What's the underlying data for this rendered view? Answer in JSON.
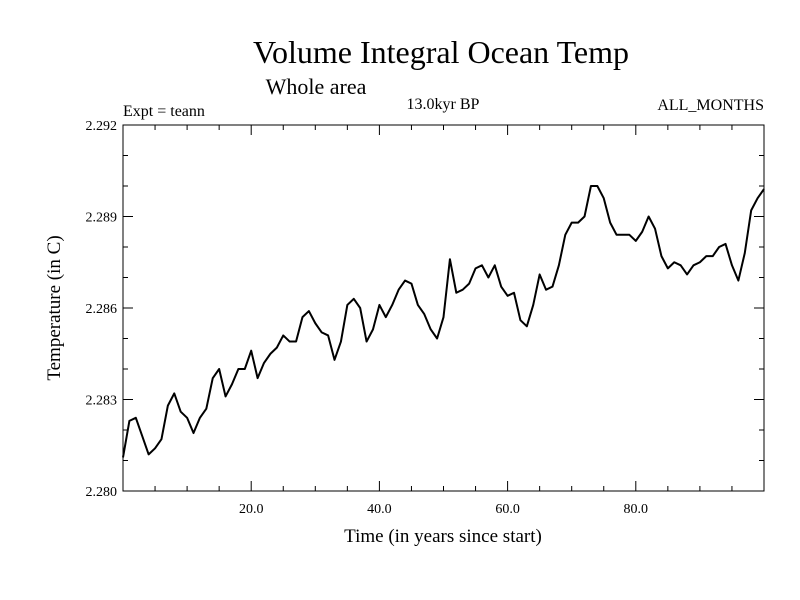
{
  "chart_data": {
    "type": "line",
    "title": "Volume Integral Ocean Temp",
    "subtitle": "Whole area",
    "info_left": "Expt = teann",
    "info_center": "13.0kyr BP",
    "info_right": "ALL_MONTHS",
    "xlabel": "Time (in years since start)",
    "ylabel": "Temperature (in C)",
    "xlim": [
      0,
      100
    ],
    "ylim": [
      2.28,
      2.292
    ],
    "x_ticks": [
      20.0,
      40.0,
      60.0,
      80.0
    ],
    "x_tick_labels": [
      "20.0",
      "40.0",
      "60.0",
      "80.0"
    ],
    "y_ticks": [
      2.28,
      2.283,
      2.286,
      2.289,
      2.292
    ],
    "y_tick_labels": [
      "2.280",
      "2.283",
      "2.286",
      "2.289",
      "2.292"
    ],
    "series": [
      {
        "name": "Temperature",
        "x": [
          0,
          1,
          2,
          3,
          4,
          5,
          6,
          7,
          8,
          9,
          10,
          11,
          12,
          13,
          14,
          15,
          16,
          17,
          18,
          19,
          20,
          21,
          22,
          23,
          24,
          25,
          26,
          27,
          28,
          29,
          30,
          31,
          32,
          33,
          34,
          35,
          36,
          37,
          38,
          39,
          40,
          41,
          42,
          43,
          44,
          45,
          46,
          47,
          48,
          49,
          50,
          51,
          52,
          53,
          54,
          55,
          56,
          57,
          58,
          59,
          60,
          61,
          62,
          63,
          64,
          65,
          66,
          67,
          68,
          69,
          70,
          71,
          72,
          73,
          74,
          75,
          76,
          77,
          78,
          79,
          80,
          81,
          82,
          83,
          84,
          85,
          86,
          87,
          88,
          89,
          90,
          91,
          92,
          93,
          94,
          95,
          96,
          97,
          98,
          99,
          100
        ],
        "values": [
          2.2811,
          2.2823,
          2.2824,
          2.2818,
          2.2812,
          2.2814,
          2.2817,
          2.2828,
          2.2832,
          2.2826,
          2.2824,
          2.2819,
          2.2824,
          2.2827,
          2.2837,
          2.284,
          2.2831,
          2.2835,
          2.284,
          2.284,
          2.2846,
          2.2837,
          2.2842,
          2.2845,
          2.2847,
          2.2851,
          2.2849,
          2.2849,
          2.2857,
          2.2859,
          2.2855,
          2.2852,
          2.2851,
          2.2843,
          2.2849,
          2.2861,
          2.2863,
          2.286,
          2.2849,
          2.2853,
          2.2861,
          2.2857,
          2.2861,
          2.2866,
          2.2869,
          2.2868,
          2.2861,
          2.2858,
          2.2853,
          2.285,
          2.2857,
          2.2876,
          2.2865,
          2.2866,
          2.2868,
          2.2873,
          2.2874,
          2.287,
          2.2874,
          2.2867,
          2.2864,
          2.2865,
          2.2856,
          2.2854,
          2.2861,
          2.2871,
          2.2866,
          2.2867,
          2.2874,
          2.2884,
          2.2888,
          2.2888,
          2.289,
          2.29,
          2.29,
          2.2896,
          2.2888,
          2.2884,
          2.2884,
          2.2884,
          2.2882,
          2.2885,
          2.289,
          2.2886,
          2.2877,
          2.2873,
          2.2875,
          2.2874,
          2.2871,
          2.2874,
          2.2875,
          2.2877,
          2.2877,
          2.288,
          2.2881,
          2.2874,
          2.2869,
          2.2878,
          2.2892,
          2.2896,
          2.2899
        ]
      }
    ]
  }
}
